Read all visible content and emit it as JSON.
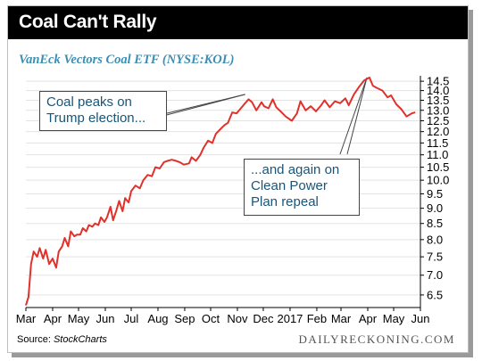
{
  "header": {
    "title": "Coal Can't Rally"
  },
  "chart_data": {
    "type": "line",
    "title": "Coal Can't Rally",
    "subtitle": "VanEck Vectors Coal ETF (NYSE:KOL)",
    "x_tick_labels": [
      "Mar",
      "Apr",
      "May",
      "Jun",
      "Jul",
      "Aug",
      "Sep",
      "Oct",
      "Nov",
      "Dec",
      "2017",
      "Feb",
      "Mar",
      "Apr",
      "May",
      "Jun"
    ],
    "y_tick_labels": [
      "6.5",
      "7.0",
      "7.5",
      "8.0",
      "8.5",
      "9.0",
      "9.5",
      "10.0",
      "10.5",
      "11.0",
      "11.5",
      "12.0",
      "12.5",
      "13.0",
      "13.5",
      "14.0",
      "14.5"
    ],
    "y_scale": "log",
    "ylim": [
      6.2,
      14.8
    ],
    "x_start": "2016-03-01",
    "x_end": "2017-06-01",
    "series": [
      {
        "color": "#e0312b",
        "x": [
          "2016-03-01",
          "2016-03-04",
          "2016-03-07",
          "2016-03-10",
          "2016-03-14",
          "2016-03-17",
          "2016-03-21",
          "2016-03-24",
          "2016-03-28",
          "2016-04-01",
          "2016-04-05",
          "2016-04-08",
          "2016-04-12",
          "2016-04-15",
          "2016-04-19",
          "2016-04-22",
          "2016-04-26",
          "2016-04-29",
          "2016-05-03",
          "2016-05-06",
          "2016-05-10",
          "2016-05-13",
          "2016-05-17",
          "2016-05-20",
          "2016-05-24",
          "2016-05-27",
          "2016-05-31",
          "2016-06-03",
          "2016-06-07",
          "2016-06-10",
          "2016-06-14",
          "2016-06-17",
          "2016-06-21",
          "2016-06-24",
          "2016-06-28",
          "2016-07-01",
          "2016-07-06",
          "2016-07-11",
          "2016-07-15",
          "2016-07-20",
          "2016-07-25",
          "2016-07-29",
          "2016-08-03",
          "2016-08-08",
          "2016-08-12",
          "2016-08-17",
          "2016-08-22",
          "2016-08-26",
          "2016-08-31",
          "2016-09-06",
          "2016-09-09",
          "2016-09-14",
          "2016-09-19",
          "2016-09-23",
          "2016-09-28",
          "2016-10-03",
          "2016-10-07",
          "2016-10-12",
          "2016-10-17",
          "2016-10-21",
          "2016-10-26",
          "2016-10-31",
          "2016-11-04",
          "2016-11-09",
          "2016-11-14",
          "2016-11-18",
          "2016-11-23",
          "2016-11-29",
          "2016-12-02",
          "2016-12-07",
          "2016-12-12",
          "2016-12-16",
          "2016-12-21",
          "2016-12-27",
          "2017-01-03",
          "2017-01-09",
          "2017-01-13",
          "2017-01-19",
          "2017-01-25",
          "2017-01-31",
          "2017-02-06",
          "2017-02-10",
          "2017-02-16",
          "2017-02-22",
          "2017-02-28",
          "2017-03-06",
          "2017-03-10",
          "2017-03-16",
          "2017-03-22",
          "2017-03-28",
          "2017-04-03",
          "2017-04-07",
          "2017-04-11",
          "2017-04-18",
          "2017-04-24",
          "2017-04-28",
          "2017-05-04",
          "2017-05-10",
          "2017-05-16",
          "2017-05-22",
          "2017-05-26"
        ],
        "y": [
          6.25,
          6.45,
          7.3,
          7.65,
          7.5,
          7.75,
          7.45,
          7.7,
          7.3,
          7.45,
          7.2,
          7.65,
          7.8,
          8.05,
          7.8,
          8.25,
          8.1,
          8.15,
          8.15,
          8.35,
          8.25,
          8.45,
          8.4,
          8.5,
          8.45,
          8.7,
          8.55,
          8.7,
          9.05,
          8.6,
          8.95,
          9.25,
          8.9,
          9.35,
          9.2,
          9.6,
          9.8,
          9.7,
          10.0,
          10.2,
          10.15,
          10.5,
          10.45,
          10.7,
          10.75,
          10.8,
          10.75,
          10.7,
          10.6,
          10.65,
          10.9,
          10.75,
          11.0,
          11.3,
          11.6,
          11.5,
          11.9,
          12.1,
          12.3,
          12.4,
          12.9,
          12.85,
          13.05,
          13.3,
          13.55,
          13.4,
          13.0,
          13.4,
          13.2,
          13.1,
          13.55,
          13.15,
          12.95,
          12.7,
          12.5,
          12.85,
          13.45,
          13.0,
          13.2,
          12.95,
          13.25,
          13.5,
          13.15,
          13.45,
          13.35,
          13.6,
          13.25,
          13.8,
          14.2,
          14.55,
          14.7,
          14.25,
          14.15,
          14.0,
          13.65,
          13.75,
          13.3,
          13.05,
          12.7,
          12.85,
          12.9
        ]
      }
    ],
    "annotations": [
      {
        "lines": [
          "Coal peaks on",
          "Trump election..."
        ],
        "target_x": "2016-11-10",
        "target_y": 13.8
      },
      {
        "lines": [
          "...and again on",
          "Clean Power",
          "Plan repeal"
        ],
        "target_x": "2017-03-31",
        "target_y": 14.7
      }
    ]
  },
  "footer": {
    "source_prefix": "Source: ",
    "source_name": "StockCharts",
    "brand": "DAILYRECKONING.COM"
  }
}
